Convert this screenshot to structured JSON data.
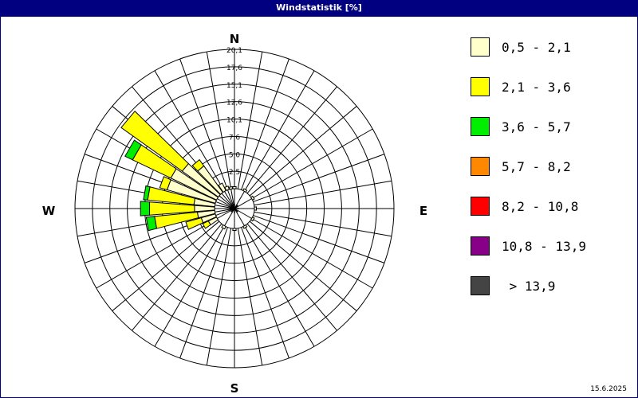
{
  "window": {
    "title": "Windstatistik [%]"
  },
  "footer": {
    "date": "15.6.2025"
  },
  "chart_data": {
    "type": "wind-rose",
    "title": "Windstatistik [%]",
    "compass": [
      "N",
      "E",
      "S",
      "W"
    ],
    "ring_labels": [
      "2,5",
      "5,0",
      "7,6",
      "10,1",
      "12,6",
      "15,1",
      "17,6",
      "20,1"
    ],
    "max": 20.1,
    "sectors": 36,
    "speed_classes": [
      {
        "label": "0,5 - 2,1",
        "color": "#ffffcc"
      },
      {
        "label": "2,1 - 3,6",
        "color": "#ffff00"
      },
      {
        "label": "3,6 - 5,7",
        "color": "#00ee00"
      },
      {
        "label": "5,7 - 8,2",
        "color": "#ff8800"
      },
      {
        "label": "8,2 - 10,8",
        "color": "#ff0000"
      },
      {
        "label": "10,8 - 13,9",
        "color": "#880088"
      },
      {
        "label": " > 13,9",
        "color": "#444444"
      }
    ],
    "petals": [
      {
        "direction": 240,
        "values": [
          1.3,
          0.9,
          0,
          0,
          0,
          0,
          0
        ]
      },
      {
        "direction": 250,
        "values": [
          2.1,
          2.3,
          0,
          0,
          0,
          0,
          0
        ]
      },
      {
        "direction": 260,
        "values": [
          2.5,
          6.2,
          1.2,
          0,
          0,
          0,
          0
        ]
      },
      {
        "direction": 270,
        "values": [
          2.9,
          6.5,
          1.3,
          0,
          0,
          0,
          0
        ]
      },
      {
        "direction": 280,
        "values": [
          3.0,
          6.7,
          0.6,
          0,
          0,
          0,
          0
        ]
      },
      {
        "direction": 290,
        "values": [
          7.2,
          1.1,
          0,
          0,
          0,
          0,
          0
        ]
      },
      {
        "direction": 300,
        "values": [
          7.3,
          6.1,
          1.2,
          0,
          0,
          0,
          0
        ]
      },
      {
        "direction": 310,
        "values": [
          6.4,
          10.8,
          0,
          0,
          0,
          0,
          0
        ]
      },
      {
        "direction": 320,
        "values": [
          4.7,
          1.1,
          0,
          0,
          0,
          0,
          0
        ]
      },
      {
        "direction": 330,
        "values": [
          1.2,
          0,
          0,
          0,
          0,
          0,
          0
        ]
      },
      {
        "direction": 340,
        "values": [
          0.5,
          0,
          0,
          0,
          0,
          0,
          0
        ]
      },
      {
        "direction": 350,
        "values": [
          0.3,
          0,
          0,
          0,
          0,
          0,
          0
        ]
      },
      {
        "direction": 0,
        "values": [
          0.3,
          0,
          0,
          0,
          0,
          0,
          0
        ]
      },
      {
        "direction": 30,
        "values": [
          0.3,
          0,
          0,
          0,
          0,
          0,
          0
        ]
      },
      {
        "direction": 60,
        "values": [
          0.3,
          0,
          0,
          0,
          0,
          0,
          0
        ]
      },
      {
        "direction": 90,
        "values": [
          0.3,
          0,
          0,
          0,
          0,
          0,
          0
        ]
      },
      {
        "direction": 120,
        "values": [
          0.3,
          0,
          0,
          0,
          0,
          0,
          0
        ]
      },
      {
        "direction": 150,
        "values": [
          0.3,
          0,
          0,
          0,
          0,
          0,
          0
        ]
      },
      {
        "direction": 180,
        "values": [
          0.3,
          0,
          0,
          0,
          0,
          0,
          0
        ]
      },
      {
        "direction": 210,
        "values": [
          0.4,
          0,
          0,
          0,
          0,
          0,
          0
        ]
      }
    ]
  }
}
